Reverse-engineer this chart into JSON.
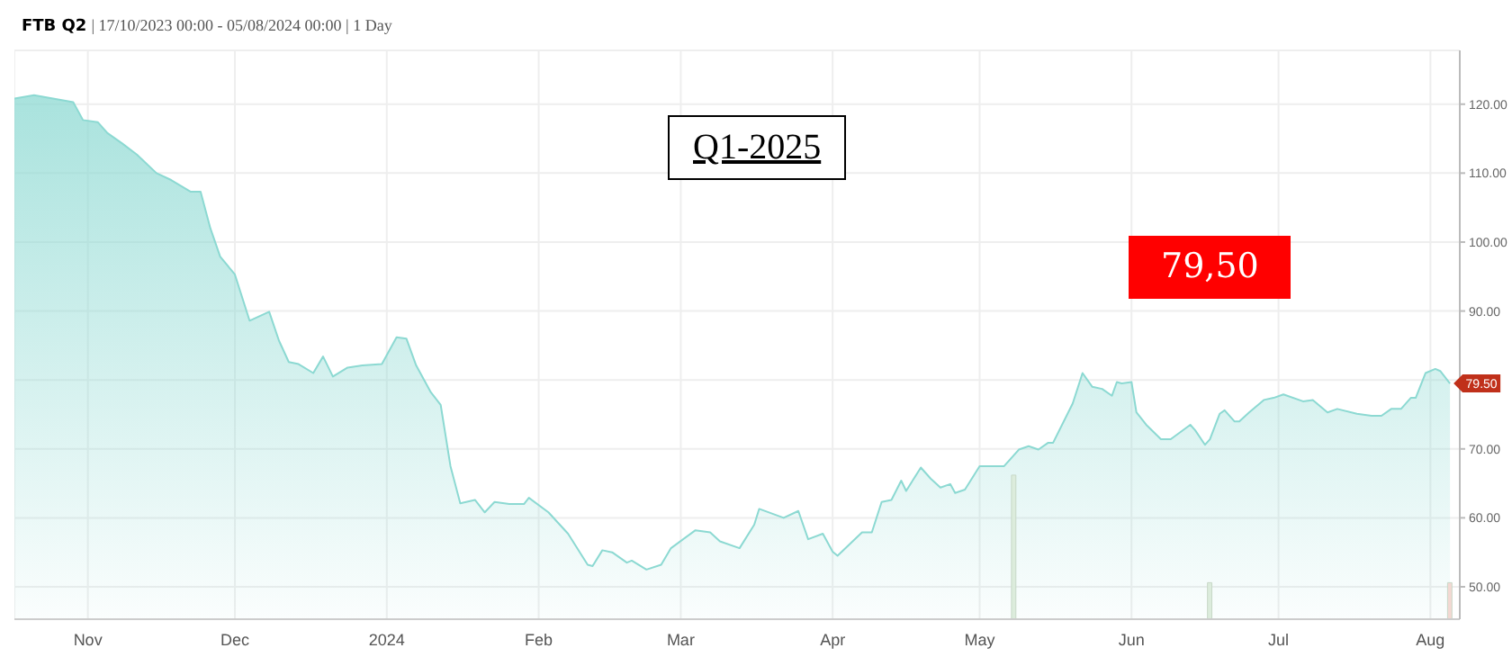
{
  "chart_data": {
    "type": "area",
    "title": "FTB Q2",
    "subtitle": "| 17/10/2023 00:00 - 05/08/2024 00:00 | 1 Day",
    "annotations": [
      "Q1-2025",
      "79,50",
      {
        "text": "79.50",
        "x": "2024-08-05",
        "y": 79.5
      }
    ],
    "xlim": [
      "2023-10-17",
      "2024-08-07"
    ],
    "xticks": [
      {
        "value": "2023-11-01",
        "label": "Nov"
      },
      {
        "value": "2023-12-01",
        "label": "Dec"
      },
      {
        "value": "2024-01-01",
        "label": "2024"
      },
      {
        "value": "2024-02-01",
        "label": "Feb"
      },
      {
        "value": "2024-03-01",
        "label": "Mar"
      },
      {
        "value": "2024-04-01",
        "label": "Apr"
      },
      {
        "value": "2024-05-01",
        "label": "May"
      },
      {
        "value": "2024-06-01",
        "label": "Jun"
      },
      {
        "value": "2024-07-01",
        "label": "Jul"
      },
      {
        "value": "2024-08-01",
        "label": "Aug"
      }
    ],
    "ylim": [
      45.3,
      127.8
    ],
    "yticks": [
      {
        "value": 50,
        "label": "50.00"
      },
      {
        "value": 60,
        "label": "60.00"
      },
      {
        "value": 70,
        "label": "70.00"
      },
      {
        "value": 80,
        "label": null
      },
      {
        "value": 90,
        "label": "90.00"
      },
      {
        "value": 100,
        "label": "100.00"
      },
      {
        "value": 110,
        "label": "110.00"
      },
      {
        "value": 120,
        "label": "120.00"
      }
    ],
    "grid": true,
    "series": [
      {
        "color": "#8cd9d2",
        "x": [
          "2023-10-17",
          "2023-10-21",
          "2023-10-29",
          "2023-10-31",
          "2023-11-03",
          "2023-11-05",
          "2023-11-08",
          "2023-11-11",
          "2023-11-15",
          "2023-11-18",
          "2023-11-22",
          "2023-11-24",
          "2023-11-26",
          "2023-11-28",
          "2023-12-01",
          "2023-12-04",
          "2023-12-08",
          "2023-12-10",
          "2023-12-12",
          "2023-12-14",
          "2023-12-17",
          "2023-12-19",
          "2023-12-21",
          "2023-12-24",
          "2023-12-27",
          "2023-12-31",
          "2024-01-03",
          "2024-01-05",
          "2024-01-07",
          "2024-01-10",
          "2024-01-12",
          "2024-01-14",
          "2024-01-16",
          "2024-01-19",
          "2024-01-21",
          "2024-01-23",
          "2024-01-26",
          "2024-01-29",
          "2024-01-30",
          "2024-02-03",
          "2024-02-07",
          "2024-02-11",
          "2024-02-12",
          "2024-02-14",
          "2024-02-16",
          "2024-02-19",
          "2024-02-20",
          "2024-02-23",
          "2024-02-26",
          "2024-02-28",
          "2024-03-04",
          "2024-03-07",
          "2024-03-09",
          "2024-03-13",
          "2024-03-16",
          "2024-03-17",
          "2024-03-22",
          "2024-03-25",
          "2024-03-27",
          "2024-03-30",
          "2024-04-01",
          "2024-04-02",
          "2024-04-07",
          "2024-04-09",
          "2024-04-11",
          "2024-04-13",
          "2024-04-15",
          "2024-04-16",
          "2024-04-19",
          "2024-04-21",
          "2024-04-23",
          "2024-04-25",
          "2024-04-26",
          "2024-04-28",
          "2024-05-01",
          "2024-05-06",
          "2024-05-09",
          "2024-05-11",
          "2024-05-13",
          "2024-05-15",
          "2024-05-16",
          "2024-05-20",
          "2024-05-22",
          "2024-05-24",
          "2024-05-26",
          "2024-05-28",
          "2024-05-29",
          "2024-05-30",
          "2024-06-01",
          "2024-06-02",
          "2024-06-04",
          "2024-06-07",
          "2024-06-09",
          "2024-06-13",
          "2024-06-14",
          "2024-06-16",
          "2024-06-17",
          "2024-06-19",
          "2024-06-20",
          "2024-06-22",
          "2024-06-23",
          "2024-06-25",
          "2024-06-28",
          "2024-06-30",
          "2024-07-02",
          "2024-07-06",
          "2024-07-08",
          "2024-07-11",
          "2024-07-13",
          "2024-07-17",
          "2024-07-20",
          "2024-07-22",
          "2024-07-24",
          "2024-07-26",
          "2024-07-28",
          "2024-07-29",
          "2024-07-31",
          "2024-08-02",
          "2024-08-03",
          "2024-08-05"
        ],
        "values": [
          120.8,
          121.3,
          120.3,
          117.7,
          117.4,
          115.8,
          114.3,
          112.7,
          110.0,
          109.0,
          107.3,
          107.3,
          102.0,
          97.9,
          95.3,
          88.6,
          89.9,
          85.7,
          82.6,
          82.3,
          81.0,
          83.4,
          80.5,
          81.8,
          82.1,
          82.3,
          86.2,
          86.0,
          82.1,
          78.2,
          76.4,
          67.5,
          62.1,
          62.6,
          60.8,
          62.3,
          62.0,
          62.0,
          62.9,
          60.8,
          57.7,
          53.2,
          53.0,
          55.3,
          55.0,
          53.5,
          53.8,
          52.5,
          53.2,
          55.6,
          58.2,
          57.9,
          56.6,
          55.6,
          59.0,
          61.3,
          60.0,
          61.0,
          56.9,
          57.7,
          55.1,
          54.5,
          57.9,
          57.9,
          62.3,
          62.6,
          65.4,
          63.9,
          67.3,
          65.7,
          64.4,
          64.9,
          63.6,
          64.1,
          67.5,
          67.5,
          69.9,
          70.4,
          69.9,
          70.9,
          70.9,
          76.6,
          81.0,
          79.0,
          78.7,
          77.7,
          79.7,
          79.5,
          79.7,
          75.3,
          73.5,
          71.4,
          71.4,
          73.5,
          72.7,
          70.6,
          71.4,
          75.1,
          75.6,
          74.0,
          74.0,
          75.3,
          77.1,
          77.4,
          77.9,
          76.9,
          77.1,
          75.3,
          75.8,
          75.1,
          74.8,
          74.8,
          75.8,
          75.8,
          77.4,
          77.4,
          81.0,
          81.6,
          81.3,
          79.5
        ]
      },
      {
        "type": "bar",
        "x": [
          "2024-05-08",
          "2024-06-17",
          "2024-08-05"
        ],
        "values": [
          66.2,
          50.6,
          50.6
        ],
        "colors": [
          "#dcecdc",
          "#dcecdc",
          "#f3d8d2"
        ]
      }
    ]
  }
}
